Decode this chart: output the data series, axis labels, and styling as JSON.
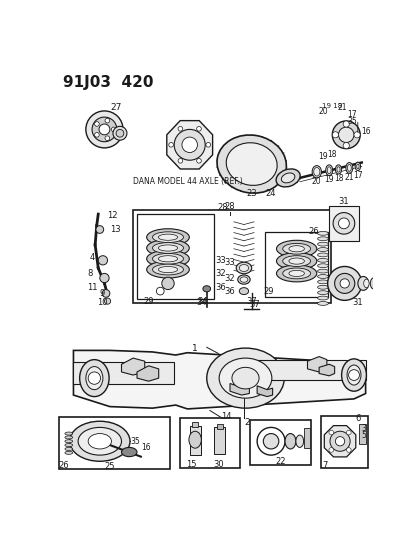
{
  "title": "91J03  420",
  "bg": "#ffffff",
  "lc": "#1a1a1a",
  "fig_w": 4.14,
  "fig_h": 5.33,
  "dpi": 100,
  "dana_label": "DANA MODEL 44 AXLE (REF.)"
}
